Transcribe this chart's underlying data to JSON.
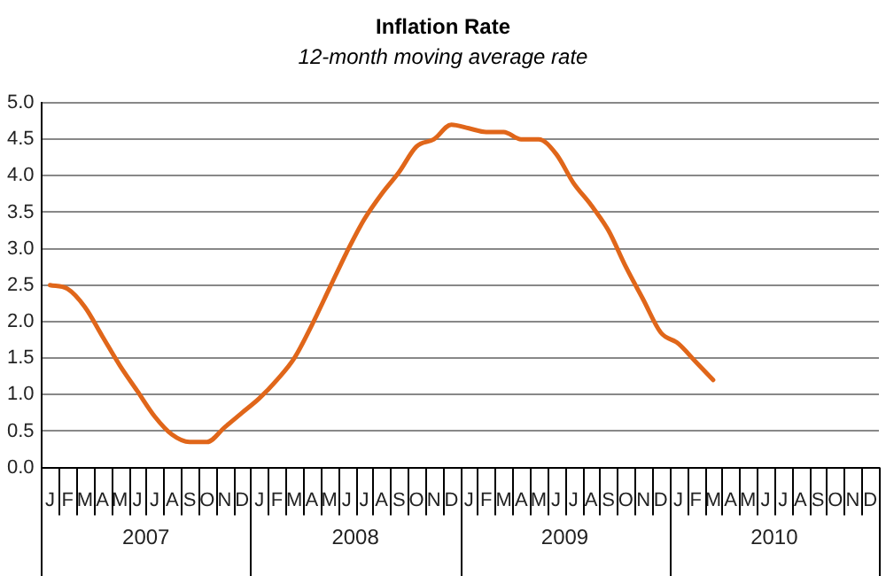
{
  "chart_data": {
    "type": "line",
    "title": "Inflation Rate",
    "subtitle": "12-month moving average rate",
    "categories": [
      "J",
      "F",
      "M",
      "A",
      "M",
      "J",
      "J",
      "A",
      "S",
      "O",
      "N",
      "D",
      "J",
      "F",
      "M",
      "A",
      "M",
      "J",
      "J",
      "A",
      "S",
      "O",
      "N",
      "D",
      "J",
      "F",
      "M",
      "A",
      "M",
      "J",
      "J",
      "A",
      "S",
      "O",
      "N",
      "D",
      "J",
      "F",
      "M",
      "A",
      "M",
      "J",
      "J",
      "A",
      "S",
      "O",
      "N",
      "D"
    ],
    "series": [
      {
        "color": "#e0661a",
        "values": [
          2.5,
          2.45,
          2.2,
          1.8,
          1.4,
          1.05,
          0.7,
          0.45,
          0.35,
          0.35,
          0.55,
          0.75,
          0.95,
          1.2,
          1.5,
          1.95,
          2.45,
          2.95,
          3.4,
          3.75,
          4.05,
          4.4,
          4.5,
          4.7,
          4.65,
          4.6,
          4.6,
          4.5,
          4.5,
          4.3,
          3.9,
          3.6,
          3.25,
          2.75,
          2.3,
          1.85,
          1.7,
          1.45,
          1.2,
          null,
          null,
          null,
          null,
          null,
          null,
          null,
          null,
          null
        ]
      }
    ],
    "annotations": [
      "2007",
      "2008",
      "2009",
      "2010"
    ],
    "ylim": [
      0,
      5
    ],
    "yticks": [
      {
        "value": 0,
        "label": "0.0"
      },
      0.5,
      {
        "value": 1,
        "label": "1.0"
      },
      1.5,
      {
        "value": 2,
        "label": "2.0"
      },
      2.5,
      {
        "value": 3,
        "label": "3.0"
      },
      3.5,
      {
        "value": 4,
        "label": "4.0"
      },
      4.5,
      {
        "value": 5,
        "label": "5.0"
      }
    ],
    "grid": "y",
    "legend": false,
    "marker": "none",
    "line_style": "solid"
  }
}
